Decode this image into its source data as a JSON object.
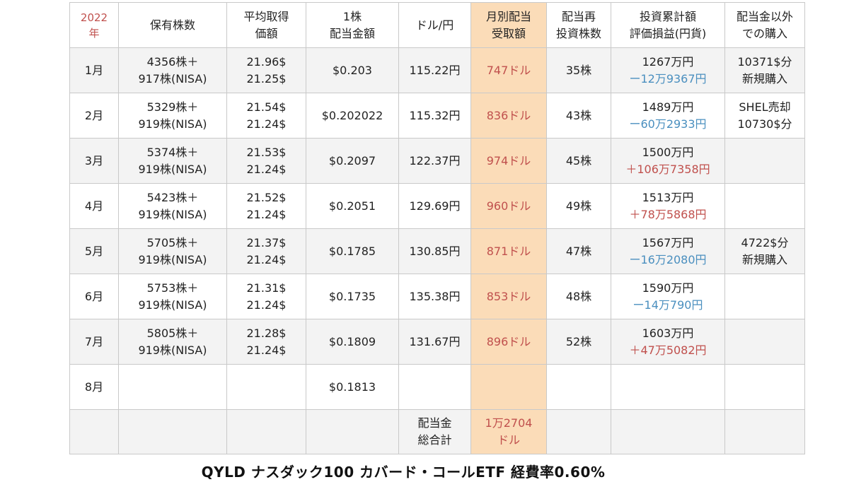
{
  "header": {
    "year": "2022",
    "year_unit": "年",
    "col1": [
      "保有株数"
    ],
    "col2": [
      "平均取得",
      "価額"
    ],
    "col3": [
      "1株",
      "配当金額"
    ],
    "col4": [
      "ドル/円"
    ],
    "col5": [
      "月別配当",
      "受取額"
    ],
    "col6": [
      "配当再",
      "投資株数"
    ],
    "col7": [
      "投資累計額",
      "評価損益(円貨)"
    ],
    "col8": [
      "配当金以外",
      "での購入"
    ]
  },
  "rows": [
    {
      "month": "1月",
      "shares": [
        "4356株＋",
        "917株(NISA)"
      ],
      "avg": [
        "21.96$",
        "21.25$"
      ],
      "div_per_share": "$0.203",
      "fx": "115.22円",
      "received": "747ドル",
      "reinvest": "35株",
      "invest_total": "1267万円",
      "pl": "ー12万9367円",
      "pl_sign": "neg",
      "other": [
        "10371$分",
        "新規購入"
      ]
    },
    {
      "month": "2月",
      "shares": [
        "5329株＋",
        "919株(NISA)"
      ],
      "avg": [
        "21.54$",
        "21.24$"
      ],
      "div_per_share": "$0.202022",
      "fx": "115.32円",
      "received": "836ドル",
      "reinvest": "43株",
      "invest_total": "1489万円",
      "pl": "ー60万2933円",
      "pl_sign": "neg",
      "other": [
        "SHEL売却",
        "10730$分"
      ]
    },
    {
      "month": "3月",
      "shares": [
        "5374株＋",
        "919株(NISA)"
      ],
      "avg": [
        "21.53$",
        "21.24$"
      ],
      "div_per_share": "$0.2097",
      "fx": "122.37円",
      "received": "974ドル",
      "reinvest": "45株",
      "invest_total": "1500万円",
      "pl": "＋106万7358円",
      "pl_sign": "pos",
      "other": [
        "",
        ""
      ]
    },
    {
      "month": "4月",
      "shares": [
        "5423株＋",
        "919株(NISA)"
      ],
      "avg": [
        "21.52$",
        "21.24$"
      ],
      "div_per_share": "$0.2051",
      "fx": "129.69円",
      "received": "960ドル",
      "reinvest": "49株",
      "invest_total": "1513万円",
      "pl": "＋78万5868円",
      "pl_sign": "pos",
      "other": [
        "",
        ""
      ]
    },
    {
      "month": "5月",
      "shares": [
        "5705株＋",
        "919株(NISA)"
      ],
      "avg": [
        "21.37$",
        "21.24$"
      ],
      "div_per_share": "$0.1785",
      "fx": "130.85円",
      "received": "871ドル",
      "reinvest": "47株",
      "invest_total": "1567万円",
      "pl": "ー16万2080円",
      "pl_sign": "neg",
      "other": [
        "4722$分",
        "新規購入"
      ]
    },
    {
      "month": "6月",
      "shares": [
        "5753株＋",
        "919株(NISA)"
      ],
      "avg": [
        "21.31$",
        "21.24$"
      ],
      "div_per_share": "$0.1735",
      "fx": "135.38円",
      "received": "853ドル",
      "reinvest": "48株",
      "invest_total": "1590万円",
      "pl": "ー14万790円",
      "pl_sign": "neg",
      "other": [
        "",
        ""
      ]
    },
    {
      "month": "7月",
      "shares": [
        "5805株＋",
        "919株(NISA)"
      ],
      "avg": [
        "21.28$",
        "21.24$"
      ],
      "div_per_share": "$0.1809",
      "fx": "131.67円",
      "received": "896ドル",
      "reinvest": "52株",
      "invest_total": "1603万円",
      "pl": "＋47万5082円",
      "pl_sign": "pos",
      "other": [
        "",
        ""
      ]
    },
    {
      "month": "8月",
      "shares": [
        "",
        ""
      ],
      "avg": [
        "",
        ""
      ],
      "div_per_share": "$0.1813",
      "fx": "",
      "received": "",
      "reinvest": "",
      "invest_total": "",
      "pl": "",
      "pl_sign": "none",
      "other": [
        "",
        ""
      ]
    }
  ],
  "total": {
    "label": [
      "配当金",
      "総合計"
    ],
    "value": [
      "1万2704",
      "ドル"
    ]
  },
  "caption": "QYLD ナスダック100 カバード・コールETF  経費率0.60%",
  "colors": {
    "highlight": "#fbdcb8",
    "negative": "#4a8fbf",
    "positive": "#c0504d",
    "year": "#c0504d",
    "row_alt": "#f3f3f3"
  }
}
